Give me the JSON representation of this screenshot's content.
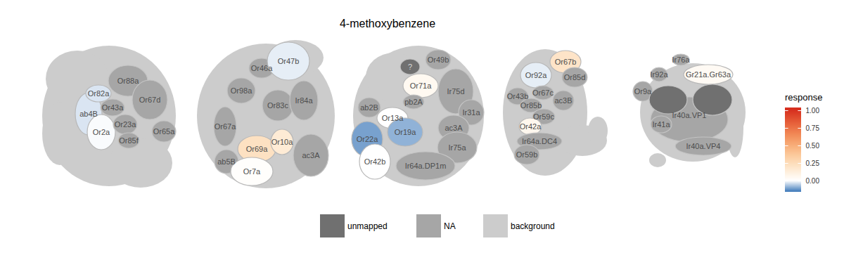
{
  "chart_data": {
    "type": "glomerulus_map",
    "title": "4-methoxybenzene",
    "legend_title": "response",
    "color_range": [
      -0.16,
      1.04
    ],
    "color_ticks": [
      {
        "value": 0,
        "label": "0.00"
      },
      {
        "value": 0.25,
        "label": "0.25"
      },
      {
        "value": 0.5,
        "label": "0.50"
      },
      {
        "value": 0.75,
        "label": "0.75"
      },
      {
        "value": 1,
        "label": "1.00"
      }
    ],
    "categories": [
      "unmapped",
      "NA",
      "background"
    ],
    "colors": [
      "#707070",
      "#a6a6a6",
      "#cccccc"
    ],
    "panels": [
      {
        "glomeruli": [
          {
            "name": "ab4B",
            "response": -0.03
          },
          {
            "name": "Or82a",
            "response": -0.03
          },
          {
            "name": "Or2a",
            "response": -0.005
          },
          {
            "name": "Or88a",
            "response": null
          },
          {
            "name": "Or43a",
            "response": null
          },
          {
            "name": "Or67d",
            "response": null
          },
          {
            "name": "Or23a",
            "response": null
          },
          {
            "name": "Or85f",
            "response": null
          },
          {
            "name": "Or65a",
            "response": null
          }
        ]
      },
      {
        "glomeruli": [
          {
            "name": "Or46a",
            "response": null
          },
          {
            "name": "Or47b",
            "response": -0.02
          },
          {
            "name": "Or98a",
            "response": null
          },
          {
            "name": "Or83c",
            "response": null
          },
          {
            "name": "Ir84a",
            "response": null
          },
          {
            "name": "Or67a",
            "response": null
          },
          {
            "name": "ac3A",
            "response": null
          },
          {
            "name": "Or69a",
            "response": 0.22
          },
          {
            "name": "Or10a",
            "response": 0.15
          },
          {
            "name": "ab5B",
            "response": null
          },
          {
            "name": "Or7a",
            "response": 0.01
          }
        ]
      },
      {
        "glomeruli": [
          {
            "name": "?",
            "response": null,
            "unmapped": true
          },
          {
            "name": "Or49b",
            "response": null
          },
          {
            "name": "Or71a",
            "response": 0.05
          },
          {
            "name": "Ir75d",
            "response": null
          },
          {
            "name": "ab2B",
            "response": null
          },
          {
            "name": "pb2A",
            "response": null
          },
          {
            "name": "Or13a",
            "response": 0
          },
          {
            "name": "Ir31a",
            "response": null
          },
          {
            "name": "Or22a",
            "response": -0.11
          },
          {
            "name": "Or19a",
            "response": -0.09
          },
          {
            "name": "ac3A",
            "response": null
          },
          {
            "name": "Or42b",
            "response": 0
          },
          {
            "name": "Ir75a",
            "response": null
          },
          {
            "name": "Ir64a.DP1m",
            "response": null
          }
        ]
      },
      {
        "glomeruli": [
          {
            "name": "Or67b",
            "response": 0.2
          },
          {
            "name": "Or92a",
            "response": -0.02
          },
          {
            "name": "Or85d",
            "response": null
          },
          {
            "name": "Or43b",
            "response": null
          },
          {
            "name": "Or67c",
            "response": null
          },
          {
            "name": "ac3B",
            "response": null
          },
          {
            "name": "Or85b",
            "response": null
          },
          {
            "name": "Or59c",
            "response": null
          },
          {
            "name": "Or42a",
            "response": 0.06
          },
          {
            "name": "Ir64a.DC4",
            "response": null
          },
          {
            "name": "Or59b",
            "response": null
          }
        ]
      },
      {
        "glomeruli": [
          {
            "name": "Ir40a.VP1",
            "response": null
          },
          {
            "name": "Ir76a",
            "response": null
          },
          {
            "name": "Ir92a",
            "response": null
          },
          {
            "name": "Gr21a.Gr63a",
            "response": 0.04
          },
          {
            "name": "Or9a",
            "response": null
          },
          {
            "name": null,
            "response": null,
            "unmapped": true
          },
          {
            "name": null,
            "response": null,
            "unmapped": true
          },
          {
            "name": "Ir41a",
            "response": null
          },
          {
            "name": "Ir40a.VP4",
            "response": null
          }
        ]
      }
    ]
  }
}
